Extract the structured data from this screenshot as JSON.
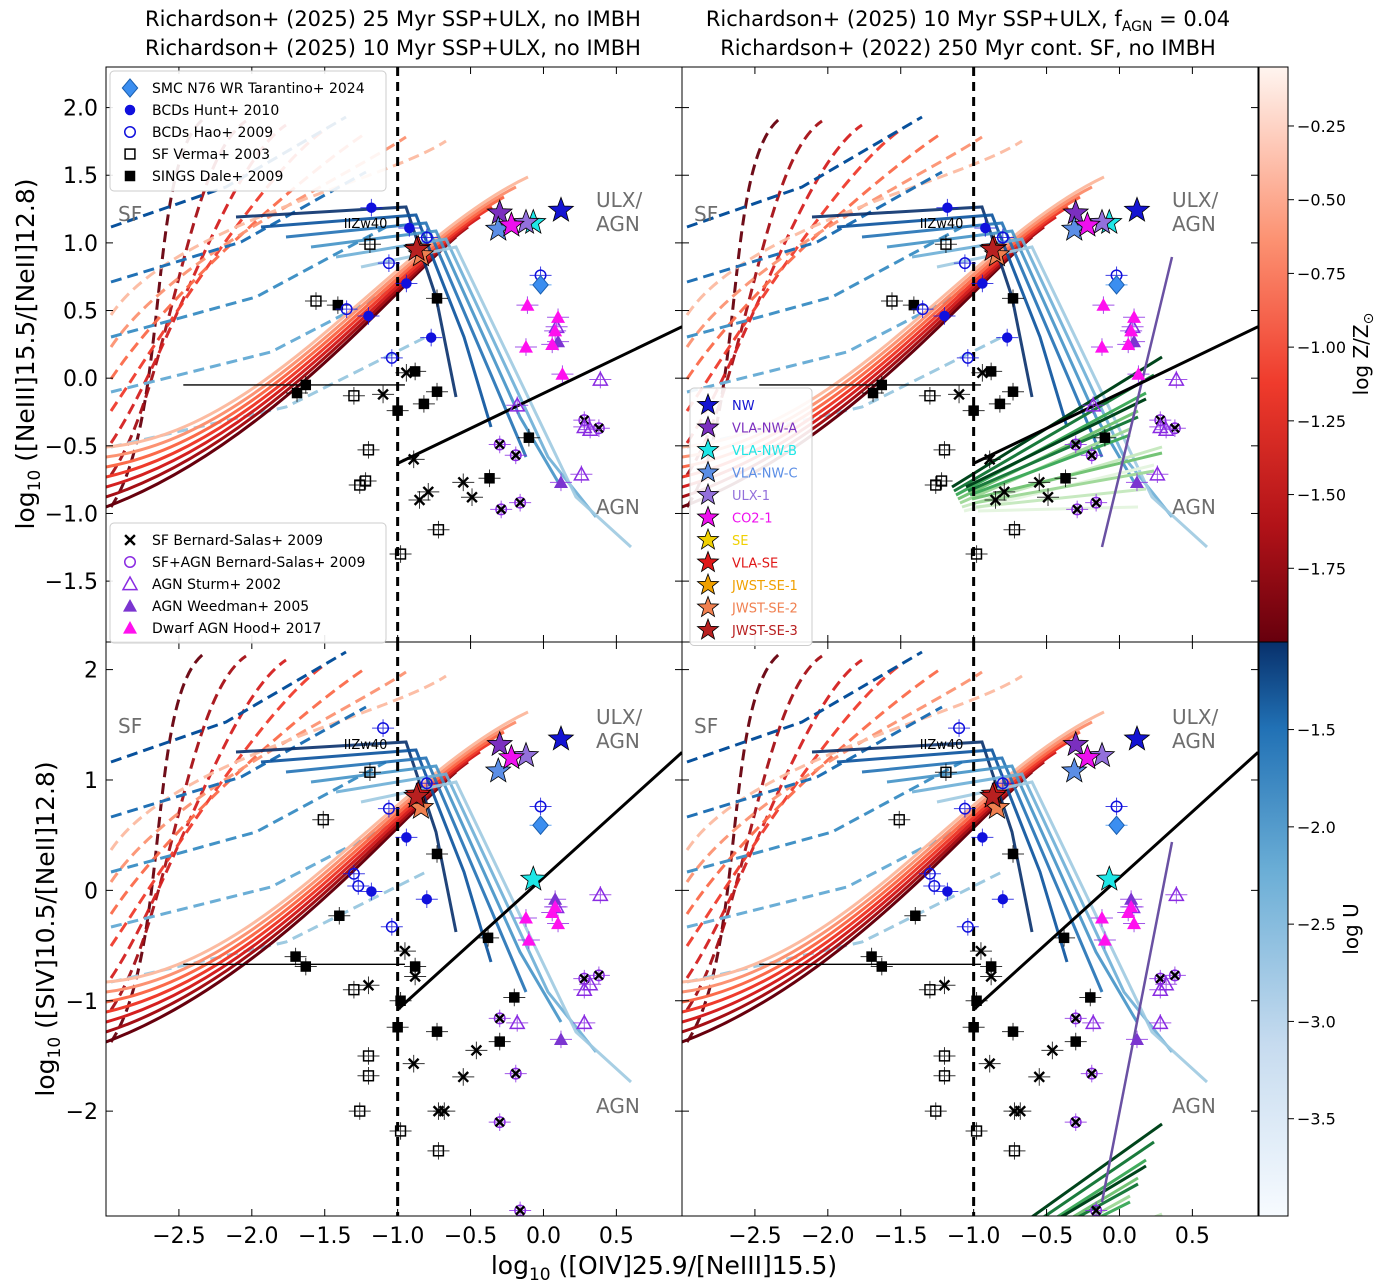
{
  "figure": {
    "titles": {
      "left_line1": "Richardson+ (2025) 25 Myr SSP+ULX, no IMBH",
      "left_line2": "Richardson+ (2025) 10 Myr SSP+ULX, no IMBH",
      "right_line1": "Richardson+ (2025) 10 Myr SSP+ULX, f",
      "right_line1_sub": "AGN",
      "right_line1_tail": " = 0.04",
      "right_line2": "Richardson+ (2022) 250 Myr cont. SF, no IMBH"
    },
    "xlabel": "log",
    "xlabel_sub": "10",
    "xlabel_tail": " ([OIV]25.9/[NeIII]15.5)",
    "ylabel_top": "log",
    "ylabel_top_sub": "10",
    "ylabel_top_tail": " ([NeIII]15.5/[NeII]12.8)",
    "ylabel_bottom": "log",
    "ylabel_bottom_sub": "10",
    "ylabel_bottom_tail": " ([SIV]10.5/[NeII]12.8)",
    "region_labels": {
      "sf": "SF",
      "ulx1": "ULX/",
      "ulx2": "AGN",
      "agn": "AGN",
      "iizw40": "IIZw40"
    },
    "legend_obs_top": [
      {
        "label": "SMC N76 WR Tarantino+ 2024",
        "marker": "diamond-filled",
        "color": "#3b8ef0"
      },
      {
        "label": "BCDs Hunt+ 2010",
        "marker": "circle-filled",
        "color": "#1010dd"
      },
      {
        "label": "BCDs Hao+ 2009",
        "marker": "circle-open",
        "color": "#1010dd"
      },
      {
        "label": "SF Verma+ 2003",
        "marker": "square-open",
        "color": "#000000"
      },
      {
        "label": "SINGS Dale+ 2009",
        "marker": "square-filled",
        "color": "#000000"
      }
    ],
    "legend_obs_bottom": [
      {
        "label": "SF Bernard-Salas+ 2009",
        "marker": "x",
        "color": "#000000"
      },
      {
        "label": "SF+AGN Bernard-Salas+ 2009",
        "marker": "circle-open",
        "color": "#8a2be2"
      },
      {
        "label": "AGN Sturm+ 2002",
        "marker": "triangle-open",
        "color": "#8a2be2"
      },
      {
        "label": "AGN Weedman+ 2005",
        "marker": "triangle-filled",
        "color": "#7b35d0"
      },
      {
        "label": "Dwarf AGN Hood+ 2017",
        "marker": "triangle-filled",
        "color": "#ff10ee"
      }
    ],
    "legend_regions": [
      {
        "label": "NW",
        "color": "#1414d2"
      },
      {
        "label": "VLA-NW-A",
        "color": "#7b2fbf"
      },
      {
        "label": "VLA-NW-B",
        "color": "#1ee6e6"
      },
      {
        "label": "VLA-NW-C",
        "color": "#5b8ee6"
      },
      {
        "label": "ULX-1",
        "color": "#9370db"
      },
      {
        "label": "CO2-1",
        "color": "#ee10ee"
      },
      {
        "label": "SE",
        "color": "#f0d000"
      },
      {
        "label": "VLA-SE",
        "color": "#e01818"
      },
      {
        "label": "JWST-SE-1",
        "color": "#f0a000"
      },
      {
        "label": "JWST-SE-2",
        "color": "#f08050"
      },
      {
        "label": "JWST-SE-3",
        "color": "#b82020"
      }
    ],
    "colorbar_metallicity": {
      "label": "log Z/Z",
      "label_sub": "⊙",
      "ticks": [
        "−0.25",
        "−0.50",
        "−0.75",
        "−1.00",
        "−1.25",
        "−1.50",
        "−1.75"
      ],
      "range": [
        -2.0,
        -0.05
      ]
    },
    "colorbar_u": {
      "label": "log U",
      "ticks": [
        "−1.5",
        "−2.0",
        "−2.5",
        "−3.0",
        "−3.5"
      ],
      "range": [
        -4.0,
        -1.05
      ]
    }
  },
  "chart_data": [
    {
      "type": "scatter",
      "panel": "top-left",
      "xlim": [
        -3.0,
        0.95
      ],
      "ylim": [
        -1.95,
        2.3
      ],
      "x_ticks": [
        "−2.5",
        "−2.0",
        "−1.5",
        "−1.0",
        "−0.5",
        "0.0",
        "0.5"
      ],
      "y_ticks": [
        "2.0",
        "1.5",
        "1.0",
        "0.5",
        "0.0",
        "−0.5",
        "−1.0",
        "−1.5"
      ],
      "regions": [
        {
          "name": "NW",
          "x": 0.12,
          "y": 1.24
        },
        {
          "name": "VLA-NW-A",
          "x": -0.3,
          "y": 1.22
        },
        {
          "name": "VLA-NW-B",
          "x": -0.07,
          "y": 1.15
        },
        {
          "name": "VLA-NW-C",
          "x": -0.31,
          "y": 1.1
        },
        {
          "name": "ULX-1",
          "x": -0.12,
          "y": 1.15
        },
        {
          "name": "CO2-1",
          "x": -0.22,
          "y": 1.13
        },
        {
          "name": "VLA-SE",
          "x": -0.86,
          "y": 0.96
        },
        {
          "name": "JWST-SE-2",
          "x": -0.84,
          "y": 0.91
        },
        {
          "name": "JWST-SE-3",
          "x": -0.87,
          "y": 0.95
        }
      ],
      "observations": {
        "smc_n76": [
          {
            "x": -0.02,
            "y": 0.69
          }
        ],
        "hunt2010": [
          {
            "x": -1.18,
            "y": 1.26
          },
          {
            "x": -0.92,
            "y": 1.11
          },
          {
            "x": -0.94,
            "y": 0.7
          },
          {
            "x": -0.77,
            "y": 0.3
          },
          {
            "x": -1.2,
            "y": 0.46
          }
        ],
        "hao2009": [
          {
            "x": -0.8,
            "y": 1.04
          },
          {
            "x": -1.06,
            "y": 0.85
          },
          {
            "x": -1.35,
            "y": 0.51
          },
          {
            "x": -1.04,
            "y": 0.15
          },
          {
            "x": -0.02,
            "y": 0.76
          }
        ],
        "verma2003": [
          {
            "x": -1.19,
            "y": 0.99
          },
          {
            "x": -1.56,
            "y": 0.57
          },
          {
            "x": -1.3,
            "y": -0.13
          },
          {
            "x": -1.2,
            "y": -0.53
          },
          {
            "x": -1.26,
            "y": -0.79
          },
          {
            "x": -1.22,
            "y": -0.76
          },
          {
            "x": -0.98,
            "y": -1.3
          },
          {
            "x": -0.72,
            "y": -1.12
          }
        ],
        "dale2009": [
          {
            "x": -0.73,
            "y": 0.59
          },
          {
            "x": -1.41,
            "y": 0.54
          },
          {
            "x": -1.69,
            "y": -0.11
          },
          {
            "x": -1.63,
            "y": -0.05
          },
          {
            "x": -0.88,
            "y": 0.05
          },
          {
            "x": -1.0,
            "y": -0.24
          },
          {
            "x": -0.82,
            "y": -0.19
          },
          {
            "x": -0.73,
            "y": -0.1
          },
          {
            "x": -0.37,
            "y": -0.74
          },
          {
            "x": -0.1,
            "y": -0.44
          }
        ],
        "bernard_sf": [
          {
            "x": -0.94,
            "y": 0.04
          },
          {
            "x": -0.89,
            "y": -0.6
          },
          {
            "x": -0.79,
            "y": -0.84
          },
          {
            "x": -0.85,
            "y": -0.9
          },
          {
            "x": -0.55,
            "y": -0.77
          },
          {
            "x": -0.49,
            "y": -0.88
          },
          {
            "x": -1.1,
            "y": -0.12
          }
        ],
        "bernard_sfagn": [
          {
            "x": -0.3,
            "y": -0.49
          },
          {
            "x": -0.19,
            "y": -0.57
          },
          {
            "x": -0.29,
            "y": -0.97
          },
          {
            "x": -0.16,
            "y": -0.92
          },
          {
            "x": 0.28,
            "y": -0.31
          },
          {
            "x": 0.38,
            "y": -0.37
          }
        ],
        "sturm2002": [
          {
            "x": -0.18,
            "y": -0.2
          },
          {
            "x": 0.28,
            "y": -0.36
          },
          {
            "x": 0.32,
            "y": -0.38
          },
          {
            "x": 0.39,
            "y": -0.01
          },
          {
            "x": 0.26,
            "y": -0.71
          },
          {
            "x": 0.09,
            "y": 0.38
          }
        ],
        "weedman2005": [
          {
            "x": 0.1,
            "y": 0.27
          },
          {
            "x": 0.12,
            "y": -0.77
          }
        ],
        "hood2017": [
          {
            "x": 0.1,
            "y": 0.45
          },
          {
            "x": 0.06,
            "y": 0.25
          },
          {
            "x": 0.13,
            "y": 0.03
          },
          {
            "x": -0.12,
            "y": 0.23
          },
          {
            "x": 0.08,
            "y": 0.35
          },
          {
            "x": -0.11,
            "y": 0.54
          }
        ]
      }
    },
    {
      "type": "scatter",
      "panel": "top-right",
      "xlim": [
        -3.0,
        0.95
      ],
      "ylim": [
        -1.95,
        2.3
      ],
      "x_ticks": [
        "−2.5",
        "−2.0",
        "−1.5",
        "−1.0",
        "−0.5",
        "0.0",
        "0.5"
      ],
      "note": "same observed regions and literature points as the top-left panel",
      "regions_same_as": "top-left"
    },
    {
      "type": "scatter",
      "panel": "bottom-left",
      "xlim": [
        -3.0,
        0.95
      ],
      "ylim": [
        -2.95,
        2.25
      ],
      "x_ticks": [
        "−2.5",
        "−2.0",
        "−1.5",
        "−1.0",
        "−0.5",
        "0.0",
        "0.5"
      ],
      "y_ticks": [
        "2",
        "1",
        "0",
        "−1",
        "−2"
      ],
      "regions": [
        {
          "name": "NW",
          "x": 0.12,
          "y": 1.37
        },
        {
          "name": "VLA-NW-A",
          "x": -0.3,
          "y": 1.32
        },
        {
          "name": "VLA-NW-B",
          "x": -0.07,
          "y": 0.1
        },
        {
          "name": "VLA-NW-C",
          "x": -0.31,
          "y": 1.08
        },
        {
          "name": "ULX-1",
          "x": -0.12,
          "y": 1.22
        },
        {
          "name": "CO2-1",
          "x": -0.22,
          "y": 1.2
        },
        {
          "name": "VLA-SE",
          "x": -0.86,
          "y": 0.87
        },
        {
          "name": "JWST-SE-2",
          "x": -0.84,
          "y": 0.75
        },
        {
          "name": "JWST-SE-3",
          "x": -0.87,
          "y": 0.85
        }
      ],
      "observations": {
        "smc_n76": [
          {
            "x": -0.02,
            "y": 0.59
          }
        ],
        "hunt2010": [
          {
            "x": -0.94,
            "y": 0.48
          },
          {
            "x": -1.18,
            "y": -0.01
          },
          {
            "x": -0.8,
            "y": -0.08
          }
        ],
        "hao2009": [
          {
            "x": -1.1,
            "y": 1.47
          },
          {
            "x": -1.06,
            "y": 0.74
          },
          {
            "x": -1.3,
            "y": 0.15
          },
          {
            "x": -1.27,
            "y": 0.04
          },
          {
            "x": -1.04,
            "y": -0.33
          },
          {
            "x": -0.8,
            "y": 0.97
          },
          {
            "x": -0.02,
            "y": 0.76
          }
        ],
        "verma2003": [
          {
            "x": -1.19,
            "y": 1.07
          },
          {
            "x": -1.51,
            "y": 0.64
          },
          {
            "x": -1.3,
            "y": -0.9
          },
          {
            "x": -1.2,
            "y": -1.5
          },
          {
            "x": -1.2,
            "y": -1.68
          },
          {
            "x": -1.26,
            "y": -2.0
          },
          {
            "x": -0.98,
            "y": -2.18
          },
          {
            "x": -0.72,
            "y": -2.36
          }
        ],
        "dale2009": [
          {
            "x": -0.73,
            "y": 0.33
          },
          {
            "x": -1.4,
            "y": -0.23
          },
          {
            "x": -1.7,
            "y": -0.6
          },
          {
            "x": -1.63,
            "y": -0.69
          },
          {
            "x": -0.88,
            "y": -0.69
          },
          {
            "x": -0.98,
            "y": -1.0
          },
          {
            "x": -1.0,
            "y": -1.24
          },
          {
            "x": -0.73,
            "y": -1.28
          },
          {
            "x": -0.38,
            "y": -0.43
          },
          {
            "x": -0.2,
            "y": -0.97
          },
          {
            "x": -0.3,
            "y": -1.37
          }
        ],
        "bernard_sf": [
          {
            "x": -0.95,
            "y": -0.55
          },
          {
            "x": -0.88,
            "y": -0.78
          },
          {
            "x": -0.89,
            "y": -1.57
          },
          {
            "x": -1.2,
            "y": -0.86
          },
          {
            "x": -0.72,
            "y": -2.0
          },
          {
            "x": -0.68,
            "y": -2.0
          },
          {
            "x": -0.55,
            "y": -1.69
          },
          {
            "x": -0.46,
            "y": -1.45
          }
        ],
        "bernard_sfagn": [
          {
            "x": -0.3,
            "y": -1.16
          },
          {
            "x": -0.19,
            "y": -1.66
          },
          {
            "x": -0.3,
            "y": -2.1
          },
          {
            "x": -0.16,
            "y": -2.9
          },
          {
            "x": 0.28,
            "y": -0.8
          },
          {
            "x": 0.38,
            "y": -0.77
          }
        ],
        "sturm2002": [
          {
            "x": -0.18,
            "y": -1.2
          },
          {
            "x": 0.28,
            "y": -0.9
          },
          {
            "x": 0.32,
            "y": -0.85
          },
          {
            "x": 0.39,
            "y": -0.04
          },
          {
            "x": 0.28,
            "y": -1.2
          },
          {
            "x": 0.09,
            "y": -0.15
          }
        ],
        "weedman2005": [
          {
            "x": 0.12,
            "y": -1.35
          },
          {
            "x": 0.08,
            "y": -0.08
          }
        ],
        "hood2017": [
          {
            "x": 0.08,
            "y": -0.15
          },
          {
            "x": 0.1,
            "y": -0.3
          },
          {
            "x": -0.12,
            "y": -0.25
          },
          {
            "x": -0.1,
            "y": -0.45
          },
          {
            "x": 0.06,
            "y": -0.2
          }
        ]
      }
    },
    {
      "type": "scatter",
      "panel": "bottom-right",
      "xlim": [
        -3.0,
        0.95
      ],
      "ylim": [
        -2.95,
        2.25
      ],
      "x_ticks": [
        "−2.5",
        "−2.0",
        "−1.5",
        "−1.0",
        "−0.5",
        "0.0",
        "0.5"
      ],
      "note": "same observed regions and literature points as the bottom-left panel",
      "regions_same_as": "bottom-left"
    }
  ]
}
